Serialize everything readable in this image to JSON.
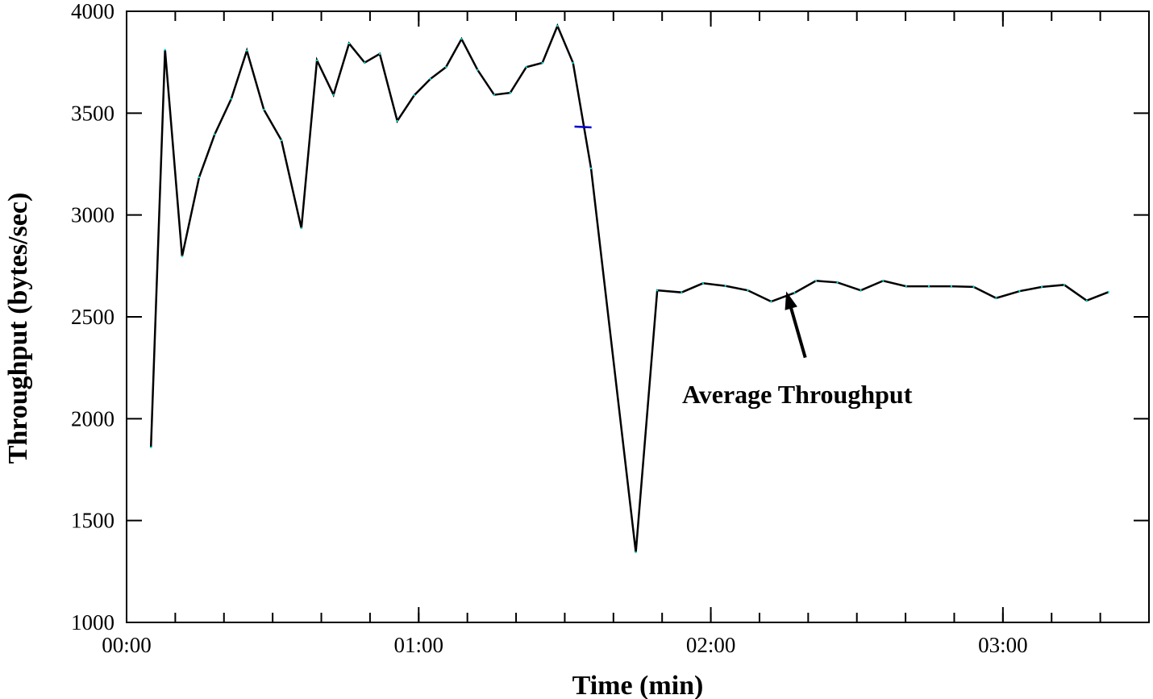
{
  "chart_data": {
    "type": "line",
    "title": "",
    "xlabel": "Time (min)",
    "ylabel": "Throughput (bytes/sec)",
    "xlim": [
      0,
      210
    ],
    "ylim": [
      1000,
      4000
    ],
    "x_unit": "seconds",
    "x_ticks": [
      {
        "value": 0,
        "label": "00:00"
      },
      {
        "value": 60,
        "label": "01:00"
      },
      {
        "value": 120,
        "label": "02:00"
      },
      {
        "value": 180,
        "label": "03:00"
      }
    ],
    "x_minor_tick_step": 10,
    "y_ticks": [
      {
        "value": 1000,
        "label": "1000"
      },
      {
        "value": 1500,
        "label": "1500"
      },
      {
        "value": 2000,
        "label": "2000"
      },
      {
        "value": 2500,
        "label": "2500"
      },
      {
        "value": 3000,
        "label": "3000"
      },
      {
        "value": 3500,
        "label": "3500"
      },
      {
        "value": 4000,
        "label": "4000"
      }
    ],
    "grid": false,
    "series": [
      {
        "name": "Throughput",
        "color": "#000000",
        "point_color": "#00e5e5",
        "x": [
          5,
          7.9,
          11.4,
          14.9,
          18.1,
          21.5,
          24.7,
          28.2,
          31.8,
          35.9,
          39.1,
          42.5,
          45.7,
          48.9,
          52.0,
          55.6,
          59.1,
          62.4,
          65.6,
          68.8,
          72.1,
          75.5,
          78.8,
          82.1,
          85.4,
          88.5,
          91.7,
          95.4,
          104.6,
          109,
          114,
          118.4,
          123.0,
          127.6,
          132.4,
          137.2,
          141.6,
          146.0,
          150.8,
          155.4,
          160.1,
          164.8,
          169.4,
          174.0,
          178.6,
          183.4,
          188.0,
          192.6,
          197.2,
          201.7
        ],
        "y": [
          1859,
          3811,
          2797,
          3185,
          3396,
          3570,
          3807,
          3517,
          3367,
          2935,
          3759,
          3590,
          3842,
          3748,
          3791,
          3462,
          3588,
          3668,
          3726,
          3864,
          3712,
          3590,
          3600,
          3726,
          3747,
          3928,
          3747,
          3229,
          1344,
          2630,
          2620,
          2665,
          2652,
          2630,
          2575,
          2618,
          2677,
          2669,
          2630,
          2677,
          2650,
          2650,
          2650,
          2647,
          2592,
          2626,
          2647,
          2657,
          2580,
          2622
        ]
      }
    ],
    "marker": {
      "x_range": [
        92,
        95.5
      ],
      "y": 3434,
      "color": "#0000cc"
    },
    "annotation": {
      "text": "Average Throughput",
      "arrow_tip": {
        "x": 135.5,
        "y": 2625
      },
      "arrow_tail": {
        "x": 139.4,
        "y": 2300
      }
    }
  }
}
